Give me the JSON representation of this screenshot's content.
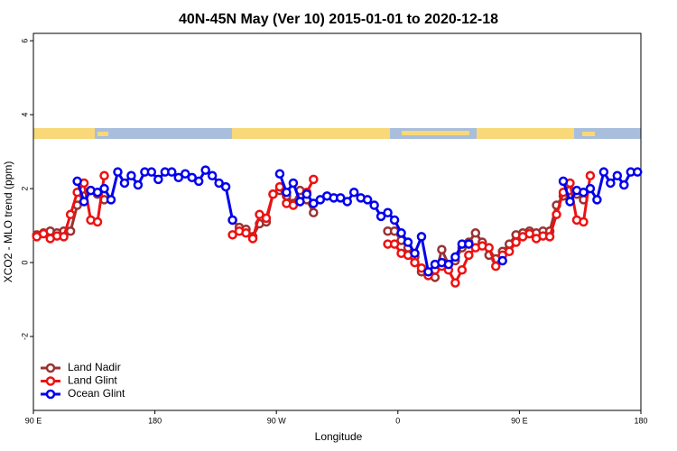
{
  "chart_data": {
    "type": "line",
    "title": "40N-45N May (Ver 10)   2015-01-01 to 2020-12-18",
    "x_label": "Longitude",
    "y_label": "XCO2 - MLO trend (ppm)",
    "x": [
      92.5,
      97.5,
      102.5,
      107.5,
      112.5,
      117.5,
      122.5,
      127.5,
      132.5,
      137.5,
      142.5,
      147.5,
      152.5,
      157.5,
      162.5,
      167.5,
      172.5,
      177.5,
      182.5,
      187.5,
      192.5,
      197.5,
      202.5,
      207.5,
      212.5,
      217.5,
      222.5,
      227.5,
      232.5,
      237.5,
      242.5,
      247.5,
      252.5,
      257.5,
      262.5,
      267.5,
      272.5,
      277.5,
      282.5,
      287.5,
      292.5,
      297.5,
      302.5,
      307.5,
      312.5,
      317.5,
      322.5,
      327.5,
      332.5,
      337.5,
      342.5,
      347.5,
      352.5,
      357.5,
      362.5,
      367.5,
      372.5,
      377.5,
      382.5,
      387.5,
      392.5,
      397.5,
      402.5,
      407.5,
      412.5,
      417.5,
      422.5,
      427.5,
      432.5,
      437.5,
      442.5,
      447.5,
      452.5,
      457.5,
      462.5,
      467.5,
      472.5,
      477.5,
      482.5,
      487.5,
      492.5,
      497.5,
      502.5,
      507.5,
      512.5,
      517.5,
      522.5,
      527.5,
      532.5,
      537.5
    ],
    "series": [
      {
        "name": "Land Nadir",
        "color": "#993333",
        "values": [
          0.75,
          0.8,
          0.85,
          0.8,
          0.85,
          0.85,
          1.55,
          1.8,
          1.95,
          1.85,
          1.7,
          null,
          null,
          null,
          null,
          null,
          null,
          null,
          null,
          null,
          null,
          null,
          null,
          null,
          null,
          null,
          null,
          null,
          null,
          1.15,
          0.95,
          0.9,
          0.7,
          1.05,
          1.1,
          1.85,
          1.95,
          1.8,
          1.6,
          1.95,
          1.7,
          1.35,
          null,
          null,
          null,
          null,
          null,
          null,
          null,
          null,
          null,
          null,
          0.85,
          0.85,
          0.6,
          0.4,
          0.15,
          -0.25,
          -0.35,
          -0.4,
          0.35,
          -0.05,
          0.05,
          0.4,
          0.55,
          0.8,
          0.55,
          0.2,
          0.1,
          0.3,
          0.5,
          0.75,
          0.8,
          0.85,
          0.8,
          0.85,
          0.85,
          1.55,
          1.8,
          1.95,
          1.85,
          1.7,
          null,
          null,
          null,
          null,
          null,
          null,
          null,
          null
        ]
      },
      {
        "name": "Land Glint",
        "color": "#ee1111",
        "values": [
          0.7,
          0.78,
          0.65,
          0.72,
          0.7,
          1.3,
          1.9,
          2.15,
          1.15,
          1.1,
          2.35,
          null,
          null,
          null,
          null,
          null,
          null,
          null,
          null,
          null,
          null,
          null,
          null,
          null,
          null,
          null,
          null,
          null,
          null,
          0.75,
          0.85,
          0.8,
          0.65,
          1.3,
          1.2,
          1.85,
          2.05,
          1.6,
          1.55,
          1.65,
          1.9,
          2.25,
          null,
          null,
          null,
          null,
          null,
          null,
          null,
          null,
          null,
          null,
          0.5,
          0.5,
          0.25,
          0.2,
          0,
          -0.15,
          -0.35,
          -0.2,
          -0.1,
          -0.2,
          -0.55,
          -0.2,
          0.2,
          0.4,
          0.45,
          0.4,
          -0.1,
          0.2,
          0.3,
          0.55,
          0.7,
          0.78,
          0.65,
          0.72,
          0.7,
          1.3,
          1.9,
          2.15,
          1.15,
          1.1,
          2.35,
          null,
          null,
          null,
          null,
          null,
          null,
          null
        ]
      },
      {
        "name": "Ocean Glint",
        "color": "#0000ee",
        "values": [
          null,
          null,
          null,
          null,
          null,
          null,
          2.2,
          1.65,
          1.95,
          1.9,
          2.0,
          1.7,
          2.45,
          2.15,
          2.35,
          2.1,
          2.45,
          2.45,
          2.25,
          2.45,
          2.45,
          2.3,
          2.4,
          2.3,
          2.2,
          2.5,
          2.35,
          2.15,
          2.05,
          1.15,
          null,
          null,
          null,
          null,
          null,
          null,
          2.4,
          1.9,
          2.15,
          1.65,
          1.85,
          1.6,
          1.7,
          1.8,
          1.75,
          1.75,
          1.65,
          1.9,
          1.75,
          1.7,
          1.55,
          1.25,
          1.35,
          1.15,
          0.8,
          0.55,
          0.25,
          0.7,
          -0.25,
          -0.05,
          0,
          -0.05,
          0.15,
          0.5,
          0.5,
          null,
          null,
          null,
          null,
          0.05,
          null,
          null,
          null,
          null,
          null,
          null,
          null,
          null,
          2.2,
          1.65,
          1.95,
          1.9,
          2.0,
          1.7,
          2.45,
          2.15,
          2.35,
          2.1,
          2.45,
          2.45
        ]
      }
    ],
    "xlim": [
      90,
      540
    ],
    "ylim": [
      -4,
      6.2
    ],
    "xticks": [
      {
        "value": 90,
        "label": "90 E"
      },
      {
        "value": 180,
        "label": "180"
      },
      {
        "value": 270,
        "label": "90 W"
      },
      {
        "value": 360,
        "label": "0"
      },
      {
        "value": 450,
        "label": "90 E"
      },
      {
        "value": 540,
        "label": "180"
      }
    ],
    "yticks": [
      -2,
      0,
      2,
      4,
      6
    ],
    "grid": false,
    "legend_position": "bottom-left"
  }
}
